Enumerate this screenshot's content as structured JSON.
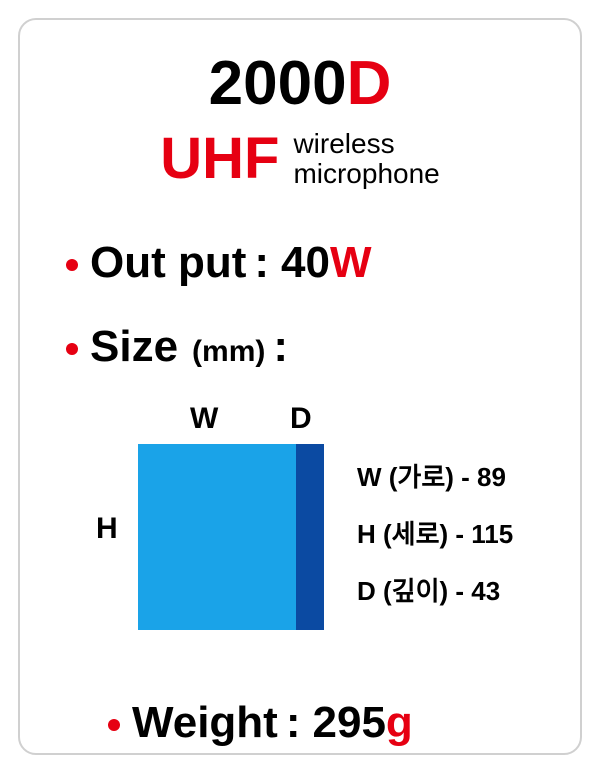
{
  "title": {
    "main": "2000",
    "accent": "D"
  },
  "subtitle": {
    "uhf": "UHF",
    "line1": "wireless",
    "line2": "microphone"
  },
  "specs": {
    "output": {
      "label": "Out put",
      "value": "40",
      "unit": "W"
    },
    "size": {
      "label": "Size",
      "unit": "(mm)"
    },
    "weight": {
      "label": "Weight",
      "value": "295",
      "unit": "g"
    }
  },
  "diagram": {
    "labels": {
      "W": "W",
      "D": "D",
      "H": "H"
    },
    "colors": {
      "W_fill": "#1aa3e8",
      "D_fill": "#0b4aa2"
    },
    "dims": {
      "W": {
        "label": "W (가로) - ",
        "value": "89"
      },
      "H": {
        "label": "H (세로) - ",
        "value": "115"
      },
      "D": {
        "label": "D (깊이) - ",
        "value": "43"
      }
    }
  },
  "colors": {
    "accent": "#e60012",
    "text": "#000000",
    "border": "#d0d0d0",
    "background": "#ffffff"
  }
}
